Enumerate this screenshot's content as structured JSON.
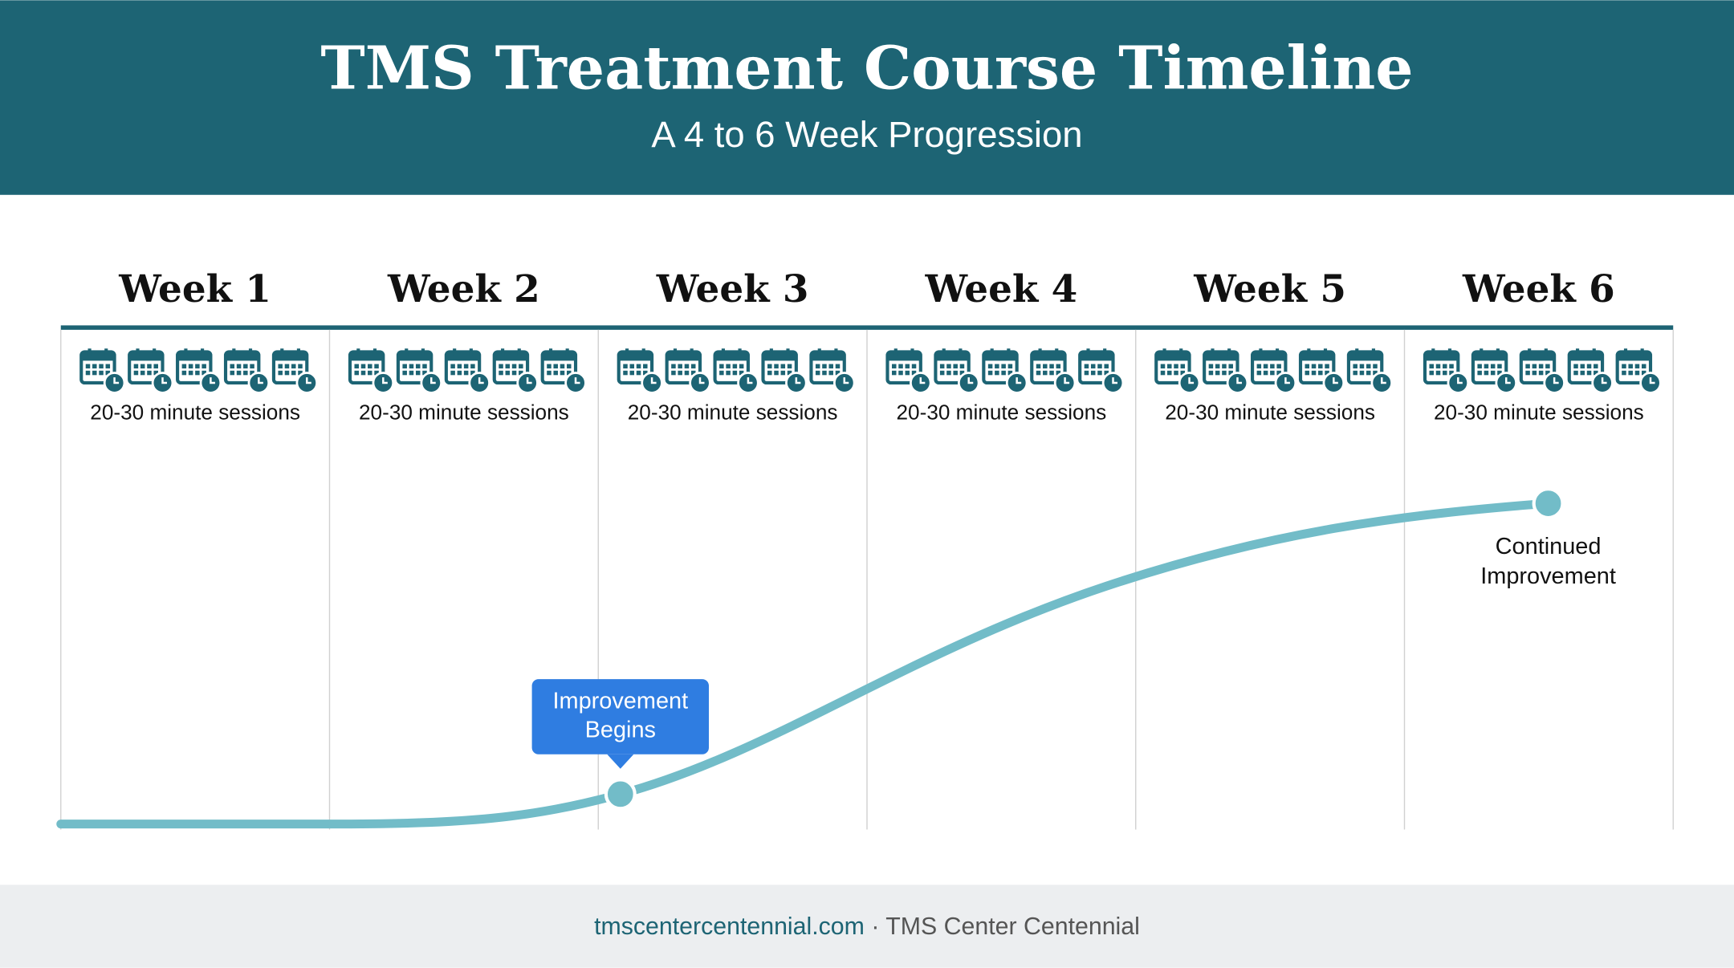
{
  "header": {
    "title": "TMS Treatment Course Timeline",
    "subtitle": "A 4 to 6 Week Progression"
  },
  "weeks": [
    {
      "label": "Week 1",
      "sessions": "20-30 minute sessions"
    },
    {
      "label": "Week 2",
      "sessions": "20-30 minute sessions"
    },
    {
      "label": "Week 3",
      "sessions": "20-30 minute sessions"
    },
    {
      "label": "Week 4",
      "sessions": "20-30 minute sessions"
    },
    {
      "label": "Week 5",
      "sessions": "20-30 minute sessions"
    },
    {
      "label": "Week 6",
      "sessions": "20-30 minute sessions"
    }
  ],
  "milestones": [
    {
      "lines": [
        "Improvement",
        "Begins"
      ]
    },
    {
      "lines": [
        "Continued",
        "Improvement"
      ]
    }
  ],
  "footer": {
    "url": "tmscentercentennial.com",
    "name": "· TMS Center Centennial"
  }
}
